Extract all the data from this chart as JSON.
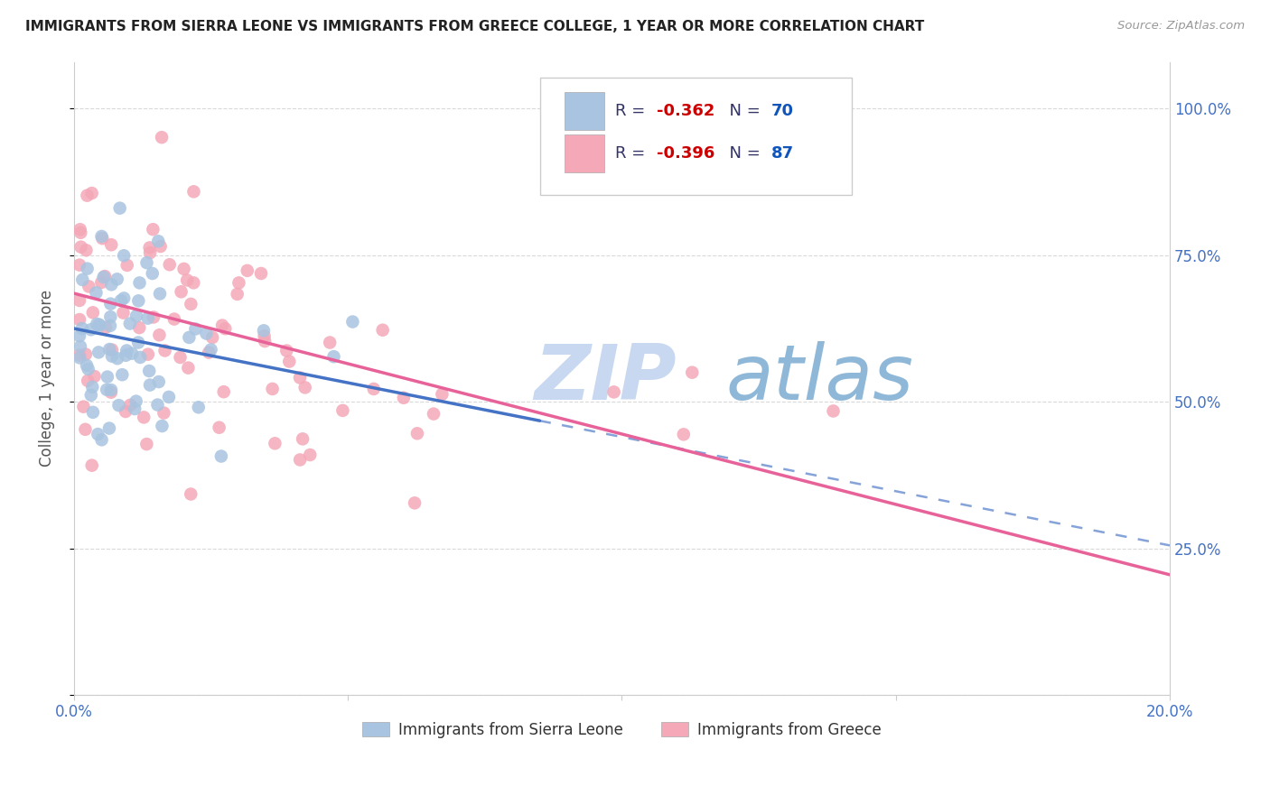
{
  "title": "IMMIGRANTS FROM SIERRA LEONE VS IMMIGRANTS FROM GREECE COLLEGE, 1 YEAR OR MORE CORRELATION CHART",
  "source": "Source: ZipAtlas.com",
  "ylabel": "College, 1 year or more",
  "xlim": [
    0.0,
    0.2
  ],
  "ylim": [
    0.0,
    1.08
  ],
  "sierra_leone_R": -0.362,
  "sierra_leone_N": 70,
  "greece_R": -0.396,
  "greece_N": 87,
  "sierra_leone_color": "#a8c4e0",
  "sierra_leone_line_color": "#4472c4",
  "greece_color": "#f4a8b8",
  "greece_line_color": "#e8629a",
  "watermark_zip_color": "#c8d8f0",
  "watermark_atlas_color": "#8fb8d8",
  "background_color": "#ffffff",
  "grid_color": "#d0d0d0",
  "sl_intercept": 0.625,
  "sl_slope": -1.85,
  "sl_line_xmax": 0.085,
  "gr_intercept": 0.685,
  "gr_slope": -2.4,
  "gr_line_xmax": 0.2
}
